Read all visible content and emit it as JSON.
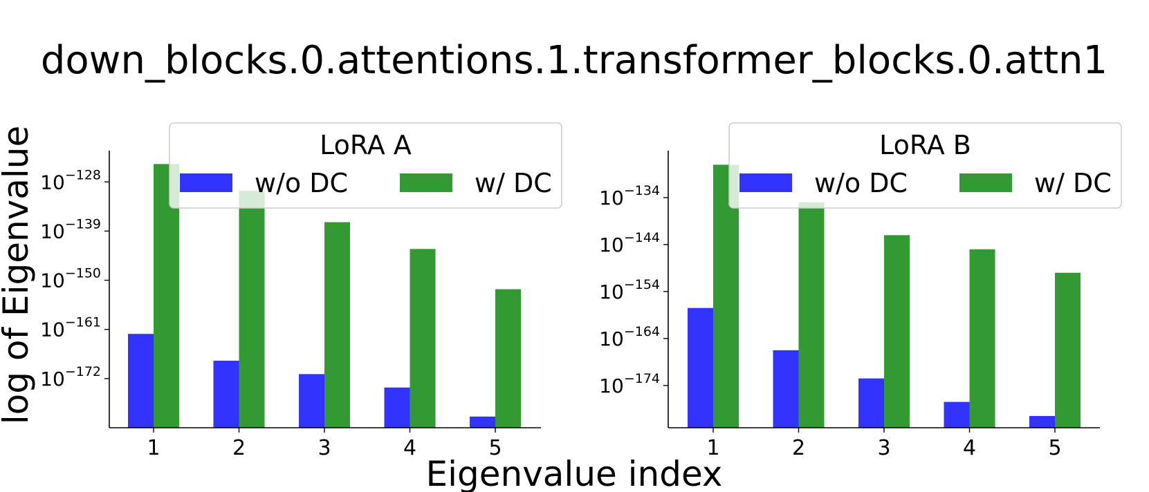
{
  "figure": {
    "title": "down_blocks.0.attentions.1.transformer_blocks.0.attn1",
    "ylabel": "log of Eigenvalue",
    "xlabel": "Eigenvalue index"
  },
  "colors": {
    "wo_dc": "#3333ff",
    "w_dc": "#339933"
  },
  "chart_data": [
    {
      "type": "bar",
      "scale": "log",
      "legend_title": "LoRA A",
      "legend_position": "top-right",
      "categories": [
        "1",
        "2",
        "3",
        "4",
        "5"
      ],
      "ylim_exp": [
        -183,
        -121
      ],
      "yticks": [
        {
          "exp": -128,
          "label": "10",
          "sup": "−128"
        },
        {
          "exp": -139,
          "label": "10",
          "sup": "−139"
        },
        {
          "exp": -150,
          "label": "10",
          "sup": "−150"
        },
        {
          "exp": -161,
          "label": "10",
          "sup": "−161"
        },
        {
          "exp": -172,
          "label": "10",
          "sup": "−172"
        }
      ],
      "series": [
        {
          "name": "w/o DC",
          "color_key": "wo_dc",
          "values_exp": [
            -162,
            -168,
            -171,
            -174,
            -180.5
          ]
        },
        {
          "name": "w/ DC",
          "color_key": "w_dc",
          "values_exp": [
            -124,
            -130,
            -137,
            -143,
            -152
          ]
        }
      ]
    },
    {
      "type": "bar",
      "scale": "log",
      "legend_title": "LoRA B",
      "legend_position": "top-right",
      "categories": [
        "1",
        "2",
        "3",
        "4",
        "5"
      ],
      "ylim_exp": [
        -183,
        -124
      ],
      "yticks": [
        {
          "exp": -134,
          "label": "10",
          "sup": "−134"
        },
        {
          "exp": -144,
          "label": "10",
          "sup": "−144"
        },
        {
          "exp": -154,
          "label": "10",
          "sup": "−154"
        },
        {
          "exp": -164,
          "label": "10",
          "sup": "−164"
        },
        {
          "exp": -174,
          "label": "10",
          "sup": "−174"
        }
      ],
      "series": [
        {
          "name": "w/o DC",
          "color_key": "wo_dc",
          "values_exp": [
            -157.5,
            -166.5,
            -172.5,
            -177.5,
            -180.5
          ]
        },
        {
          "name": "w/ DC",
          "color_key": "w_dc",
          "values_exp": [
            -127,
            -135,
            -142,
            -145,
            -150
          ]
        }
      ]
    }
  ]
}
